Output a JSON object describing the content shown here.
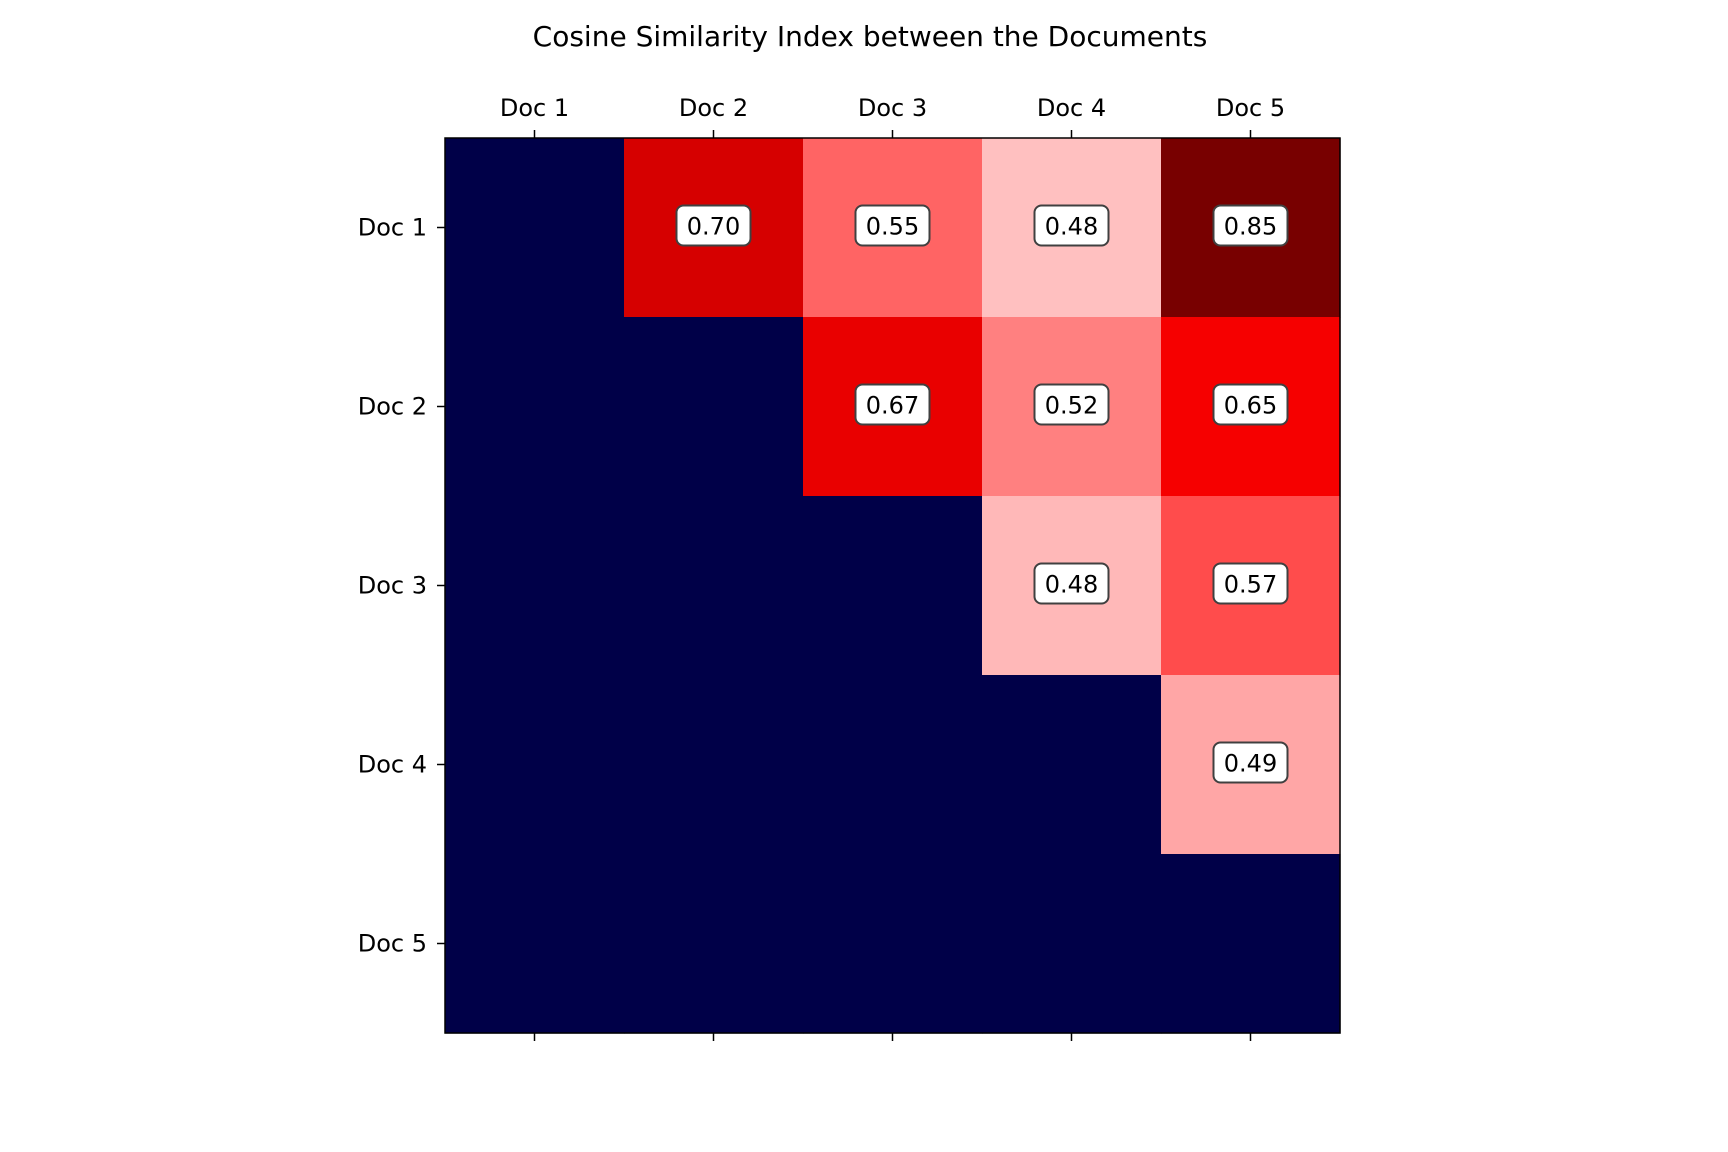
{
  "chart_data": {
    "type": "heatmap",
    "title": "Cosine Similarity Index between the Documents",
    "x_labels": [
      "Doc 1",
      "Doc 2",
      "Doc 3",
      "Doc 4",
      "Doc 5"
    ],
    "y_labels": [
      "Doc 1",
      "Doc 2",
      "Doc 3",
      "Doc 4",
      "Doc 5"
    ],
    "x_tick_position": "top",
    "values": [
      [
        null,
        0.7,
        0.55,
        0.48,
        0.85
      ],
      [
        null,
        null,
        0.67,
        0.52,
        0.65
      ],
      [
        null,
        null,
        null,
        0.48,
        0.57
      ],
      [
        null,
        null,
        null,
        null,
        0.49
      ],
      [
        null,
        null,
        null,
        null,
        null
      ]
    ],
    "value_labels": [
      [
        "",
        "0.70",
        "0.55",
        "0.48",
        "0.85"
      ],
      [
        "",
        "",
        "0.67",
        "0.52",
        "0.65"
      ],
      [
        "",
        "",
        "",
        "0.48",
        "0.57"
      ],
      [
        "",
        "",
        "",
        "",
        "0.49"
      ],
      [
        "",
        "",
        "",
        "",
        ""
      ]
    ],
    "colors": {
      "masked_cell": "#000048",
      "cells": [
        [
          null,
          "#d60000",
          "#ff6464",
          "#ffc0c0",
          "#780000"
        ],
        [
          null,
          null,
          "#e90000",
          "#ff8080",
          "#f60000"
        ],
        [
          null,
          null,
          null,
          "#ffb8b8",
          "#ff4c4c"
        ],
        [
          null,
          null,
          null,
          null,
          "#ffa6a6"
        ],
        [
          null,
          null,
          null,
          null,
          null
        ]
      ],
      "label_box_fill": "#ffffff",
      "label_box_stroke": "#404040"
    }
  }
}
